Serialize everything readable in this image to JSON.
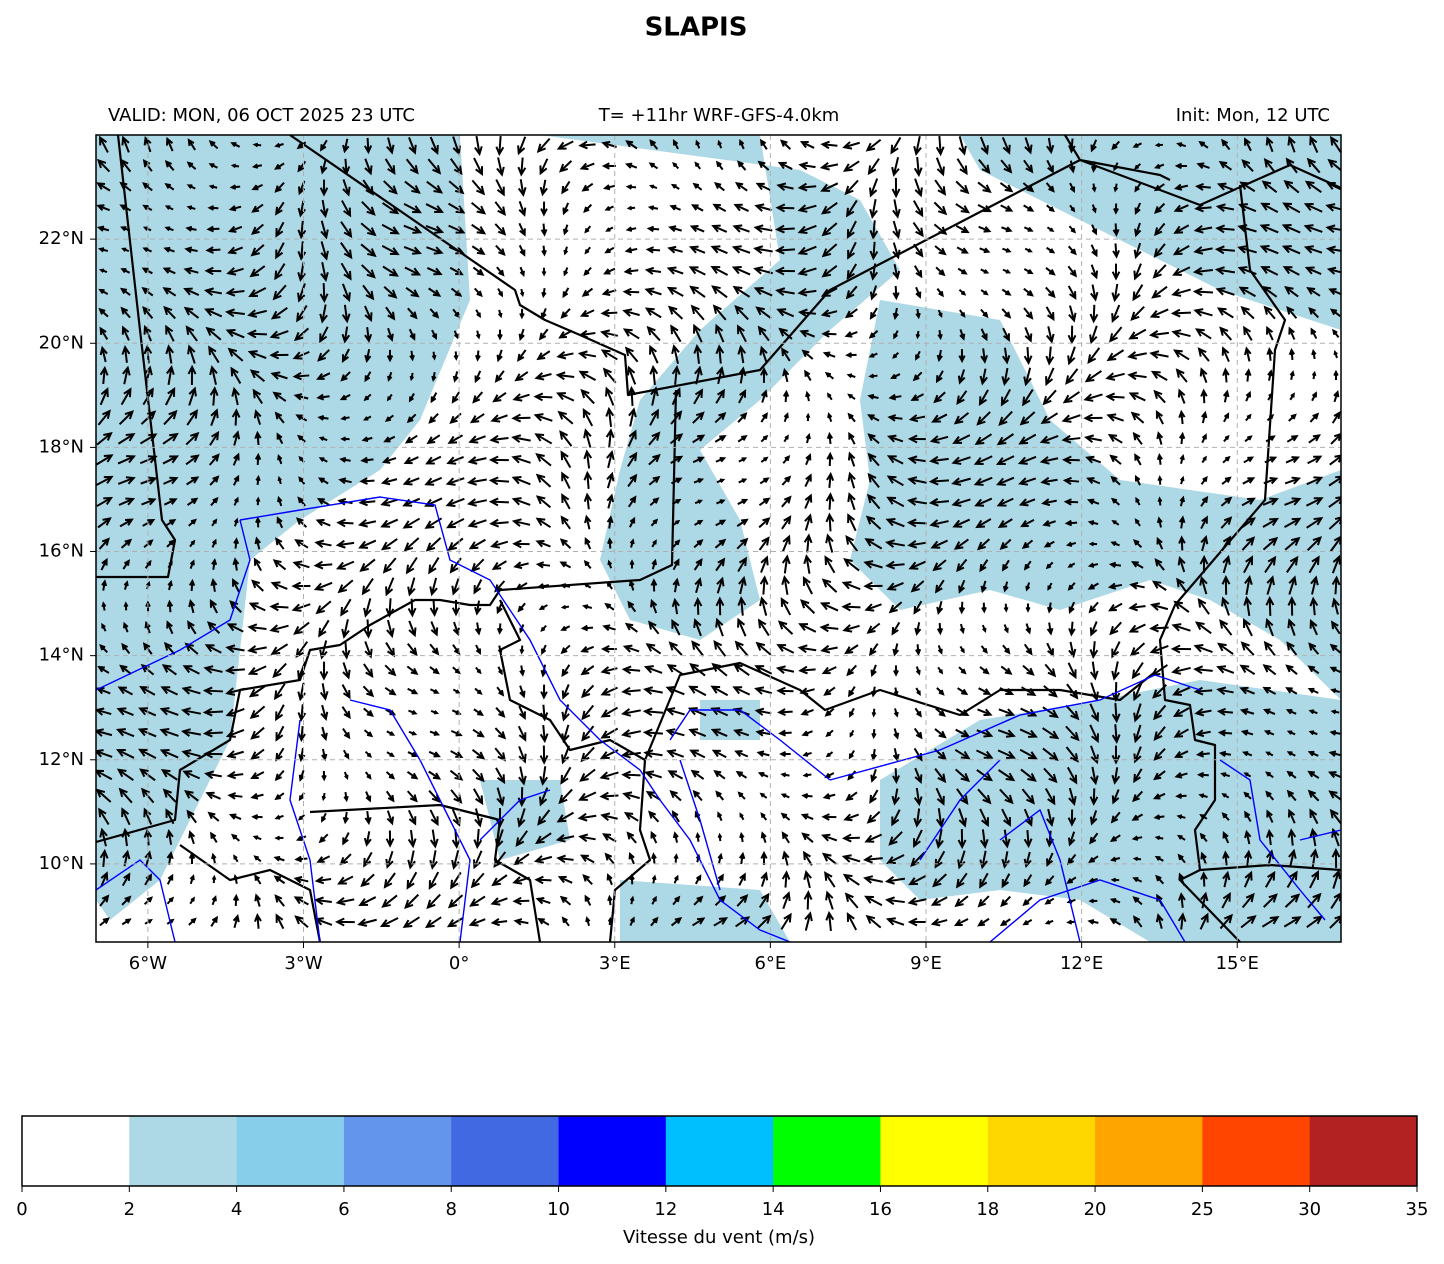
{
  "title": "SLAPIS",
  "header": {
    "valid": "VALID: MON, 06 OCT 2025 23 UTC",
    "run": "T= +11hr WRF-GFS-4.0km",
    "init": "Init: Mon, 12 UTC"
  },
  "map": {
    "xlim": [
      -7,
      17
    ],
    "ylim": [
      8.5,
      24
    ],
    "grid": true,
    "xticks": [
      {
        "value": -6,
        "label": "6°W"
      },
      {
        "value": -3,
        "label": "3°W"
      },
      {
        "value": 0,
        "label": "0°"
      },
      {
        "value": 3,
        "label": "3°E"
      },
      {
        "value": 6,
        "label": "6°E"
      },
      {
        "value": 9,
        "label": "9°E"
      },
      {
        "value": 12,
        "label": "12°E"
      },
      {
        "value": 15,
        "label": "15°E"
      }
    ],
    "yticks": [
      {
        "value": 10,
        "label": "10°N"
      },
      {
        "value": 12,
        "label": "12°N"
      },
      {
        "value": 14,
        "label": "14°N"
      },
      {
        "value": 16,
        "label": "16°N"
      },
      {
        "value": 18,
        "label": "18°N"
      },
      {
        "value": 20,
        "label": "20°N"
      },
      {
        "value": 22,
        "label": "22°N"
      }
    ]
  },
  "colorbar": {
    "label": "Vitesse du vent (m/s)",
    "bounds": [
      0,
      2,
      4,
      6,
      8,
      10,
      12,
      14,
      16,
      18,
      20,
      25,
      30,
      35
    ],
    "colors": [
      "#ffffff",
      "#add8e6",
      "#87ceeb",
      "#6495ed",
      "#4169e1",
      "#0000ff",
      "#00bfff",
      "#00ff00",
      "#ffff00",
      "#ffd700",
      "#ffa500",
      "#ff4500",
      "#b22222"
    ]
  }
}
